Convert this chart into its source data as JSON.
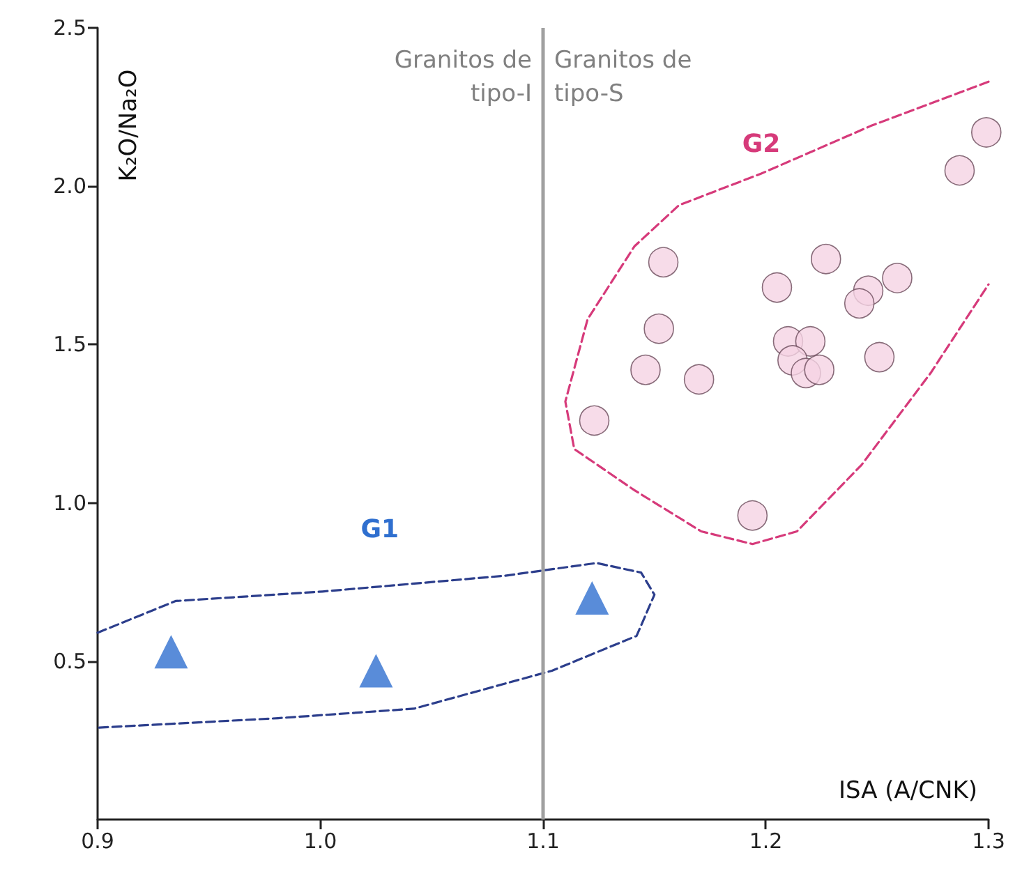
{
  "chart_data": {
    "type": "scatter",
    "xlabel": "ISA (A/CNK)",
    "ylabel": "K₂O/Na₂O",
    "xlim": [
      0.9,
      1.3
    ],
    "xticks": [
      0.9,
      {
        "value": 1.0,
        "label": "1.0"
      },
      1.1,
      1.2,
      1.3
    ],
    "ylim": [
      0,
      2.5
    ],
    "yticks": [
      0.5,
      {
        "value": 1.0,
        "label": "1.0"
      },
      1.5,
      {
        "value": 2.0,
        "label": "2.0"
      },
      2.5
    ],
    "grid": false,
    "legend": false,
    "ref_lines": [
      {
        "axis": "x",
        "value": 1.1,
        "color": "#a0a0a0"
      }
    ],
    "annotations": [
      {
        "text": "Granitos de\ntipo-I",
        "x": 1.1,
        "y": 2.45
      },
      {
        "text": "Granitos de\ntipo-S",
        "x": 1.1,
        "y": 2.45
      }
    ],
    "series": [
      {
        "name": "G1",
        "marker": "triangle",
        "color": "#2f6fcf",
        "x": [
          0.933,
          1.025,
          1.122
        ],
        "values": [
          0.53,
          0.47,
          0.7
        ]
      },
      {
        "type": "line",
        "line_style": "dashed",
        "marker": "none",
        "color": "#2c3e8c",
        "x": [
          0.9,
          0.935,
          1.001,
          1.083,
          1.124,
          1.144,
          1.15,
          1.142,
          1.104,
          1.042,
          0.981,
          0.9
        ],
        "values": [
          0.59,
          0.69,
          0.72,
          0.77,
          0.81,
          0.78,
          0.71,
          0.58,
          0.47,
          0.35,
          0.32,
          0.29
        ]
      },
      {
        "marker": "circle",
        "color": "#f5d3e3",
        "x": [
          1.123,
          1.154,
          1.152,
          1.146,
          1.17,
          1.205,
          1.227,
          1.246,
          1.242,
          1.259,
          1.21,
          1.22,
          1.212,
          1.218,
          1.224,
          1.251,
          1.194,
          1.287,
          1.299
        ],
        "values": [
          1.26,
          1.76,
          1.55,
          1.42,
          1.39,
          1.68,
          1.77,
          1.67,
          1.63,
          1.71,
          1.51,
          1.51,
          1.45,
          1.41,
          1.42,
          1.46,
          0.96,
          2.05,
          2.17
        ]
      },
      {
        "name": "G2",
        "type": "line",
        "line_style": "dashed",
        "marker": "none",
        "color": "#d63a7a",
        "x": [
          1.3,
          1.247,
          1.198,
          1.161,
          1.141,
          1.12,
          1.11,
          1.114,
          1.141,
          1.171,
          1.194,
          1.214,
          1.243,
          1.274,
          1.3
        ],
        "values": [
          2.33,
          2.19,
          2.04,
          1.94,
          1.81,
          1.58,
          1.32,
          1.17,
          1.04,
          0.91,
          0.87,
          0.91,
          1.12,
          1.41,
          1.69
        ]
      }
    ]
  }
}
